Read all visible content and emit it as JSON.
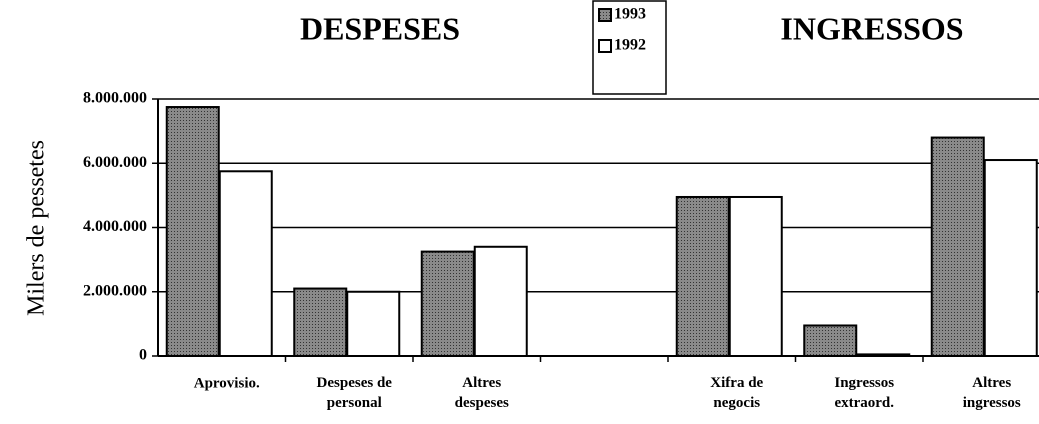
{
  "chart_data": {
    "type": "bar",
    "titles": [
      "DESPESES",
      "INGRESSOS"
    ],
    "ylabel": "Milers de pessetes",
    "categories": [
      "Aprovisio.",
      "Despeses de\npersonal",
      "Altres\ndespeses",
      null,
      "Xifra de\nnegocis",
      "Ingressos\nextraord.",
      "Altres\ningressos"
    ],
    "series": [
      {
        "name": "1993",
        "color": "#7a7a7a",
        "values": [
          7750000,
          2100000,
          3250000,
          null,
          4950000,
          950000,
          6800000
        ]
      },
      {
        "name": "1992",
        "color": "#ffffff",
        "values": [
          5750000,
          2000000,
          3400000,
          null,
          4950000,
          50000,
          6100000
        ]
      }
    ],
    "ylim": [
      0,
      8000000
    ],
    "yticks": [
      0,
      {
        "value": 2000000,
        "label": "2.000.000"
      },
      {
        "value": 4000000,
        "label": "4.000.000"
      },
      {
        "value": 6000000,
        "label": "6.000.000"
      },
      {
        "value": 8000000,
        "label": "8.000.000"
      }
    ],
    "grid": true
  }
}
